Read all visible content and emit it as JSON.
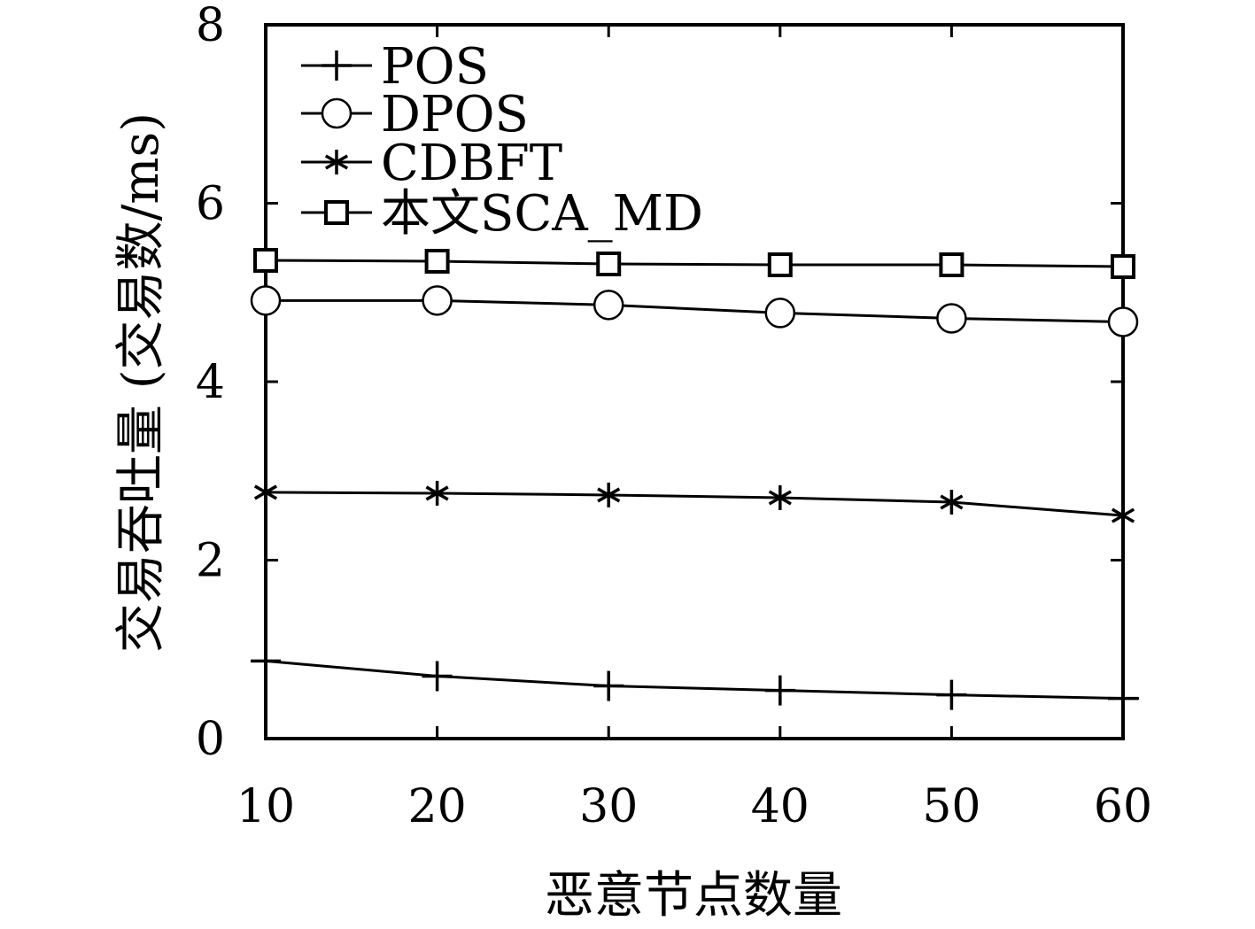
{
  "chart_data": {
    "type": "line",
    "xlabel": "恶意节点数量",
    "ylabel": "交易吞吐量 (交易数/ms)",
    "x": [
      10,
      20,
      30,
      40,
      50,
      60
    ],
    "xlim": [
      10,
      60
    ],
    "ylim": [
      0,
      8
    ],
    "xticks": [
      "10",
      "20",
      "30",
      "40",
      "50",
      "60"
    ],
    "yticks": [
      "0",
      "2",
      "4",
      "6",
      "8"
    ],
    "grid": false,
    "legend_position": "top-left",
    "series": [
      {
        "name": "POS",
        "marker": "plus",
        "values": [
          0.87,
          0.7,
          0.59,
          0.54,
          0.49,
          0.45
        ]
      },
      {
        "name": "DPOS",
        "marker": "circle",
        "values": [
          4.91,
          4.91,
          4.86,
          4.77,
          4.71,
          4.67
        ]
      },
      {
        "name": "CDBFT",
        "marker": "asterisk",
        "values": [
          2.76,
          2.75,
          2.73,
          2.7,
          2.65,
          2.5
        ]
      },
      {
        "name": "本文SCA_MD",
        "marker": "square",
        "values": [
          5.36,
          5.35,
          5.32,
          5.31,
          5.31,
          5.29
        ]
      }
    ],
    "colors": {
      "line": "#000000",
      "background": "#ffffff"
    }
  }
}
